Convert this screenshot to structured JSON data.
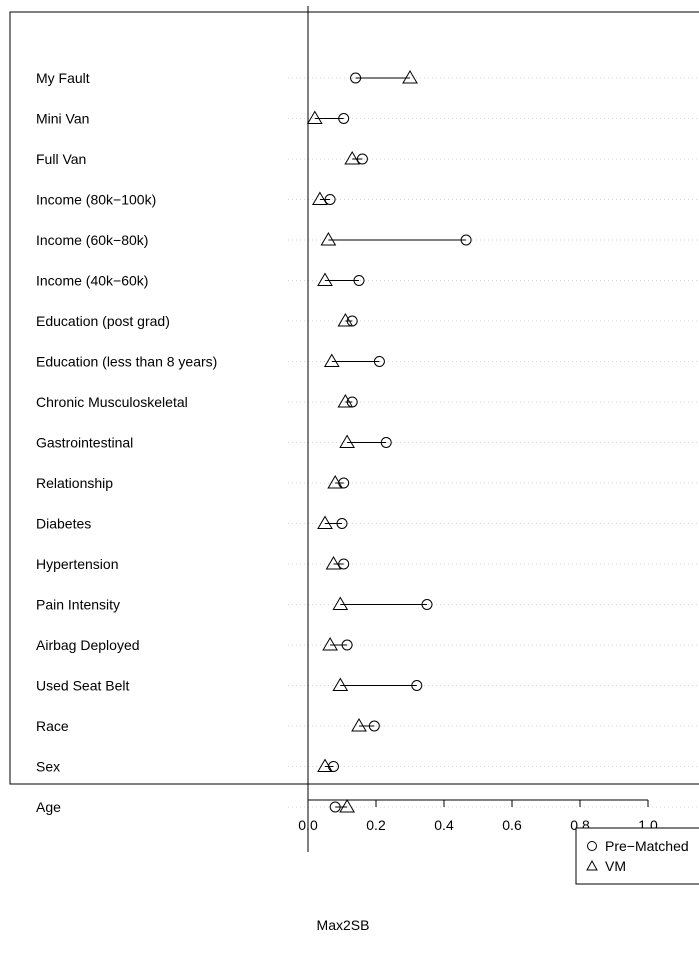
{
  "chart_data": {
    "type": "scatter",
    "xlabel": "Max2SB",
    "xticks": [
      0.0,
      0.2,
      0.4,
      0.6,
      0.8,
      1.0
    ],
    "xtick_labels": [
      "0.0",
      "0.2",
      "0.4",
      "0.6",
      "0.8",
      "1.0"
    ],
    "reference_line_x": 0.0,
    "grid": "dotted horizontal guide lines per row",
    "legend_position": "bottom-right",
    "categories": [
      "My Fault",
      "Mini Van",
      "Full Van",
      "Income (80k−100k)",
      "Income (60k−80k)",
      "Income (40k−60k)",
      "Education (post grad)",
      "Education (less than 8 years)",
      "Chronic Musculoskeletal",
      "Gastrointestinal",
      "Relationship",
      "Diabetes",
      "Hypertension",
      "Pain Intensity",
      "Airbag Deployed",
      "Used Seat Belt",
      "Race",
      "Sex",
      "Age"
    ],
    "series": [
      {
        "name": "Pre−Matched",
        "marker": "circle",
        "values": [
          0.14,
          0.105,
          0.16,
          0.065,
          0.465,
          0.15,
          0.13,
          0.21,
          0.13,
          0.23,
          0.105,
          0.1,
          0.105,
          0.35,
          0.115,
          0.32,
          0.195,
          0.075,
          0.08
        ]
      },
      {
        "name": "VM",
        "marker": "triangle",
        "values": [
          0.3,
          0.02,
          0.13,
          0.035,
          0.06,
          0.05,
          0.11,
          0.07,
          0.11,
          0.115,
          0.08,
          0.05,
          0.075,
          0.095,
          0.065,
          0.095,
          0.15,
          0.05,
          0.115
        ]
      }
    ]
  }
}
